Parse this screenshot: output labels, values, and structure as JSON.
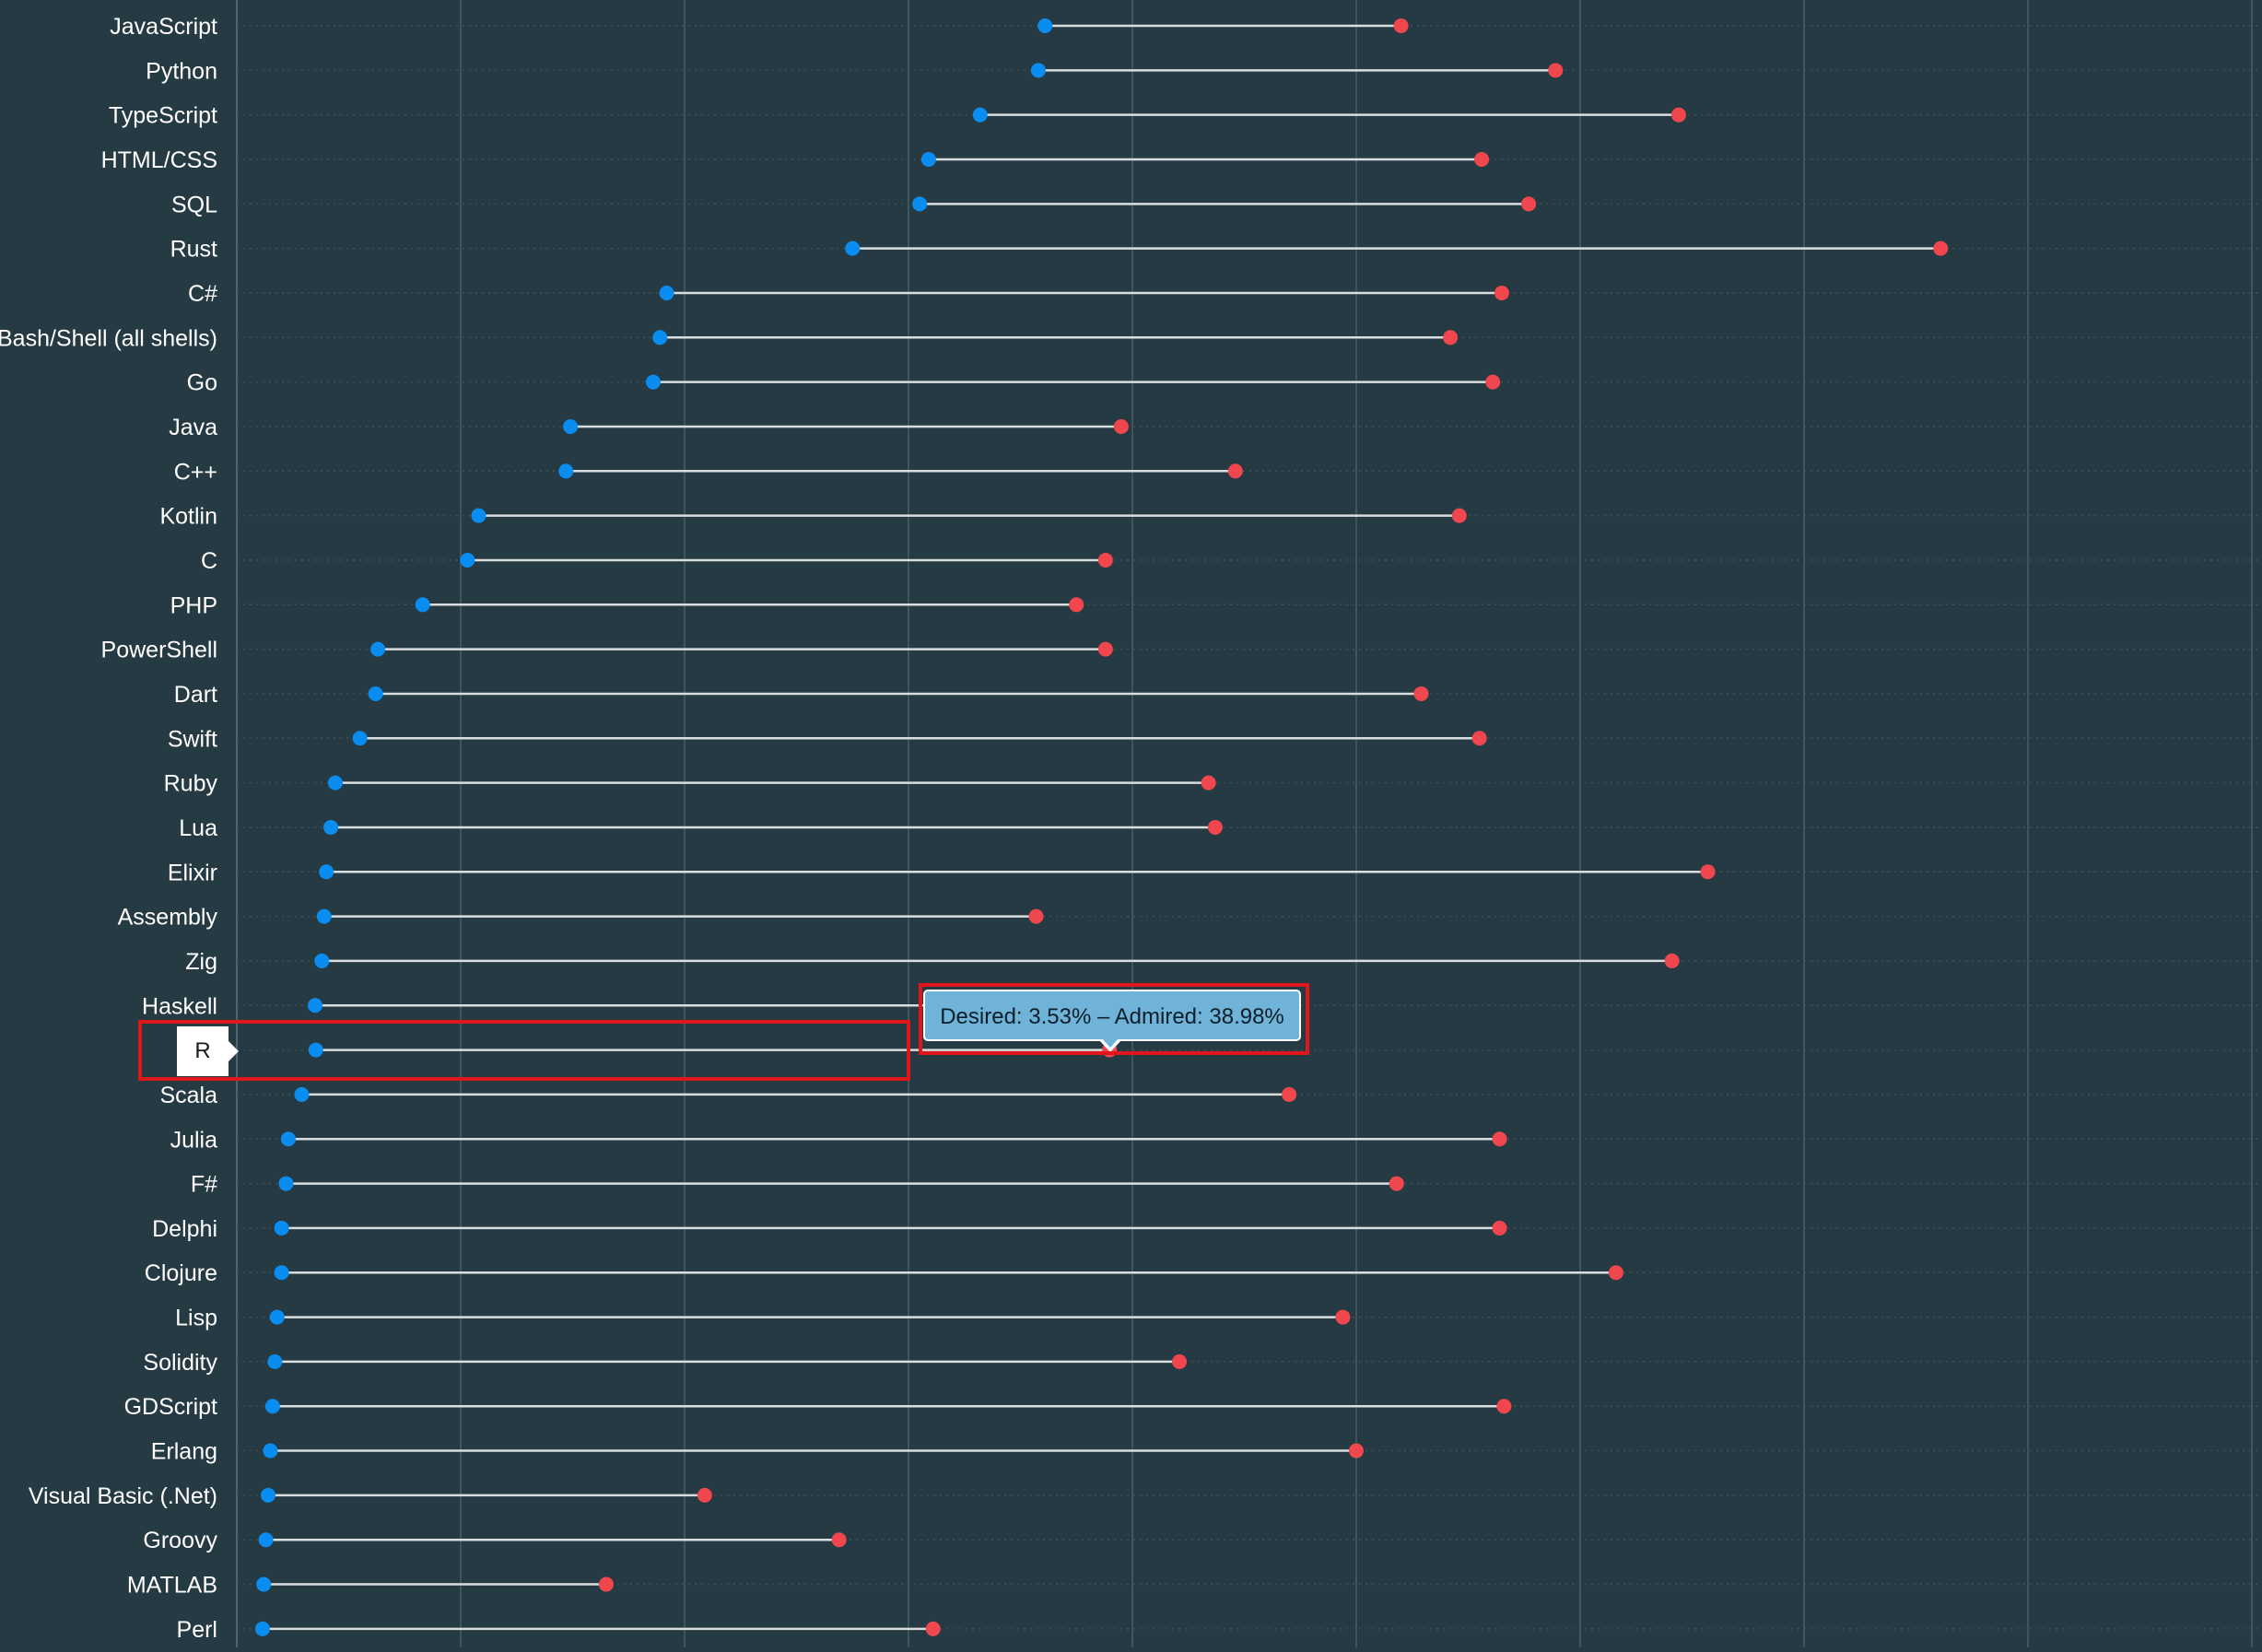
{
  "chart_data": {
    "type": "dumbbell",
    "x_unit": "%",
    "xlim": [
      0,
      90
    ],
    "grid": true,
    "series": [
      {
        "name": "Desired",
        "color": "#0a8df0"
      },
      {
        "name": "Admired",
        "color": "#f0474f"
      }
    ],
    "categories": [
      "JavaScript",
      "Python",
      "TypeScript",
      "HTML/CSS",
      "SQL",
      "Rust",
      "C#",
      "Bash/Shell (all shells)",
      "Go",
      "Java",
      "C++",
      "Kotlin",
      "C",
      "PHP",
      "PowerShell",
      "Dart",
      "Swift",
      "Ruby",
      "Lua",
      "Elixir",
      "Assembly",
      "Zig",
      "Haskell",
      "R",
      "Scala",
      "Julia",
      "F#",
      "Delphi",
      "Clojure",
      "Lisp",
      "Solidity",
      "GDScript",
      "Erlang",
      "Visual Basic (.Net)",
      "Groovy",
      "MATLAB",
      "Perl"
    ],
    "desired": [
      36.1,
      35.8,
      33.2,
      30.9,
      30.5,
      27.5,
      19.2,
      18.9,
      18.6,
      14.9,
      14.7,
      10.8,
      10.3,
      8.3,
      6.3,
      6.2,
      5.5,
      4.4,
      4.2,
      4.0,
      3.9,
      3.8,
      3.5,
      3.53,
      2.9,
      2.3,
      2.2,
      2.0,
      2.0,
      1.8,
      1.7,
      1.6,
      1.5,
      1.4,
      1.3,
      1.2,
      1.15
    ],
    "admired": [
      52.0,
      58.9,
      64.4,
      55.6,
      57.7,
      76.1,
      56.5,
      54.2,
      56.1,
      39.5,
      44.6,
      54.6,
      38.8,
      37.5,
      38.8,
      52.9,
      55.5,
      43.4,
      43.7,
      65.7,
      35.7,
      64.1,
      46.9,
      38.98,
      47.0,
      56.4,
      51.8,
      56.4,
      61.6,
      49.4,
      42.1,
      56.6,
      50.0,
      20.9,
      26.9,
      16.5,
      31.1
    ],
    "highlight": {
      "category": "R",
      "tooltip": "Desired: 3.53% – Admired: 38.98%"
    }
  }
}
